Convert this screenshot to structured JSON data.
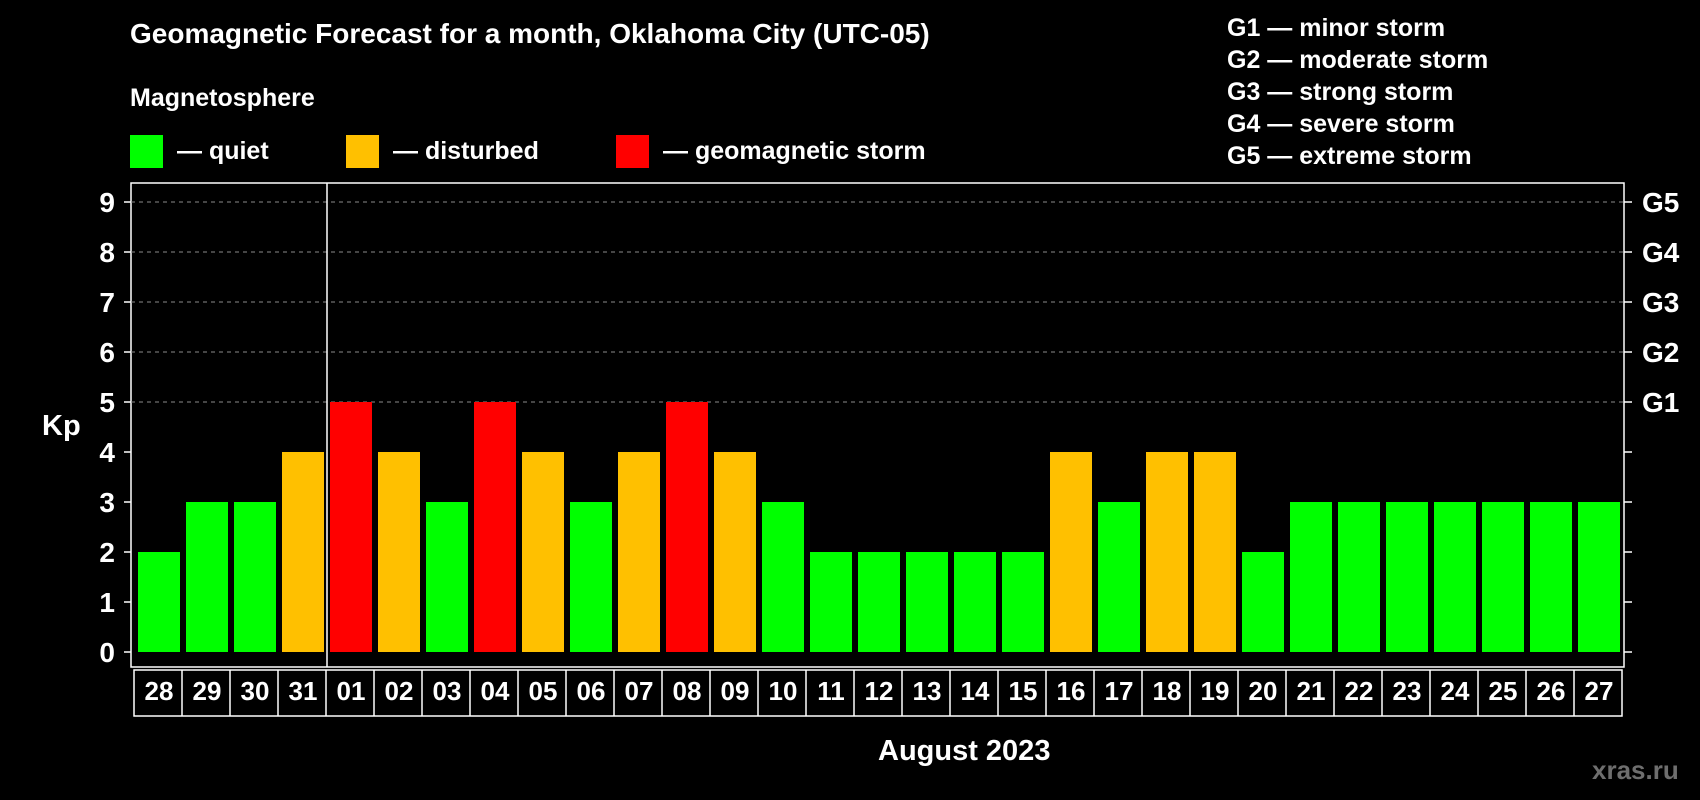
{
  "title": "Geomagnetic Forecast for a month, Oklahoma City (UTC-05)",
  "legend": {
    "heading": "Magnetosphere",
    "items": [
      {
        "label": "— quiet",
        "color": "#00ff00"
      },
      {
        "label": "— disturbed",
        "color": "#ffc000"
      },
      {
        "label": "— geomagnetic storm",
        "color": "#ff0000"
      }
    ]
  },
  "g_legend": [
    "G1 — minor storm",
    "G2 — moderate storm",
    "G3 — strong storm",
    "G4 — severe storm",
    "G5 — extreme storm"
  ],
  "watermark": "xras.ru",
  "colors": {
    "quiet": "#00ff00",
    "disturbed": "#ffc000",
    "storm": "#ff0000",
    "background": "#000000",
    "axes": "#ffffff"
  },
  "chart_data": {
    "type": "bar",
    "title": "Geomagnetic Forecast for a month, Oklahoma City (UTC-05)",
    "ylabel": "Kp",
    "xlabel": "August 2023",
    "ylim": [
      0,
      9
    ],
    "yticks": [
      "0",
      "1",
      "2",
      "3",
      "4",
      "5",
      "6",
      "7",
      "8",
      "9"
    ],
    "right_ticks": [
      {
        "kp": 5,
        "label": "G1"
      },
      {
        "kp": 6,
        "label": "G2"
      },
      {
        "kp": 7,
        "label": "G3"
      },
      {
        "kp": 8,
        "label": "G4"
      },
      {
        "kp": 9,
        "label": "G5"
      }
    ],
    "grid": "dashed horizontal at Kp 5–9",
    "month_divider_after": "31",
    "categories": [
      "28",
      "29",
      "30",
      "31",
      "01",
      "02",
      "03",
      "04",
      "05",
      "06",
      "07",
      "08",
      "09",
      "10",
      "11",
      "12",
      "13",
      "14",
      "15",
      "16",
      "17",
      "18",
      "19",
      "20",
      "21",
      "22",
      "23",
      "24",
      "25",
      "26",
      "27"
    ],
    "values": [
      2,
      3,
      3,
      4,
      5,
      4,
      3,
      5,
      4,
      3,
      4,
      5,
      4,
      3,
      2,
      2,
      2,
      2,
      2,
      4,
      3,
      4,
      4,
      2,
      3,
      3,
      3,
      3,
      3,
      3,
      3
    ]
  }
}
